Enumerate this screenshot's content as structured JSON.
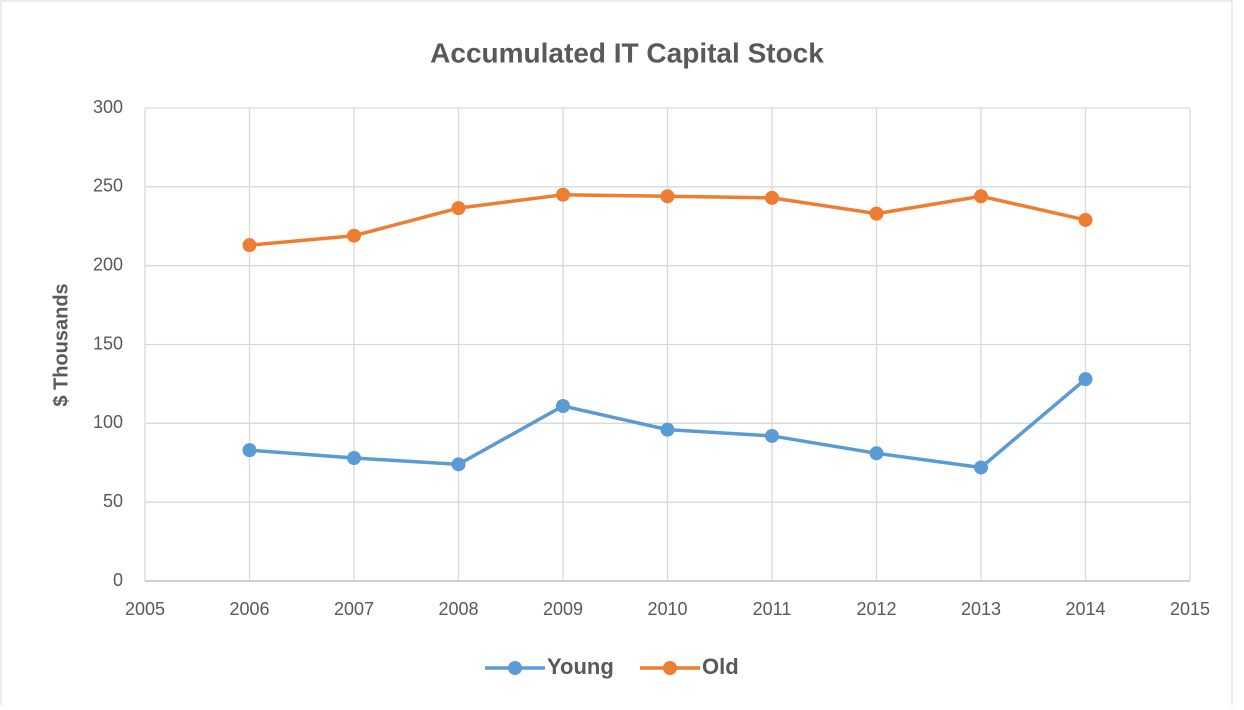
{
  "chart_data": {
    "type": "line",
    "title": "Accumulated IT Capital Stock",
    "y_label": "$ Thousands",
    "x": [
      2006,
      2007,
      2008,
      2009,
      2010,
      2011,
      2012,
      2013,
      2014
    ],
    "series": [
      {
        "name": "Young",
        "color": "#5b9bd5",
        "values": [
          83,
          78,
          74,
          111,
          96,
          92,
          81,
          72,
          128
        ]
      },
      {
        "name": "Old",
        "color": "#ed7d31",
        "values": [
          213,
          219,
          236.5,
          245,
          244,
          243,
          233,
          244,
          229
        ]
      }
    ],
    "xlim": [
      2005,
      2015
    ],
    "xticks": [
      2005,
      2006,
      2007,
      2008,
      2009,
      2010,
      2011,
      2012,
      2013,
      2014,
      2015
    ],
    "ylim": [
      0,
      300
    ],
    "yticks": [
      0,
      50,
      100,
      150,
      200,
      250,
      300
    ],
    "grid": true,
    "legend": "bottom"
  }
}
